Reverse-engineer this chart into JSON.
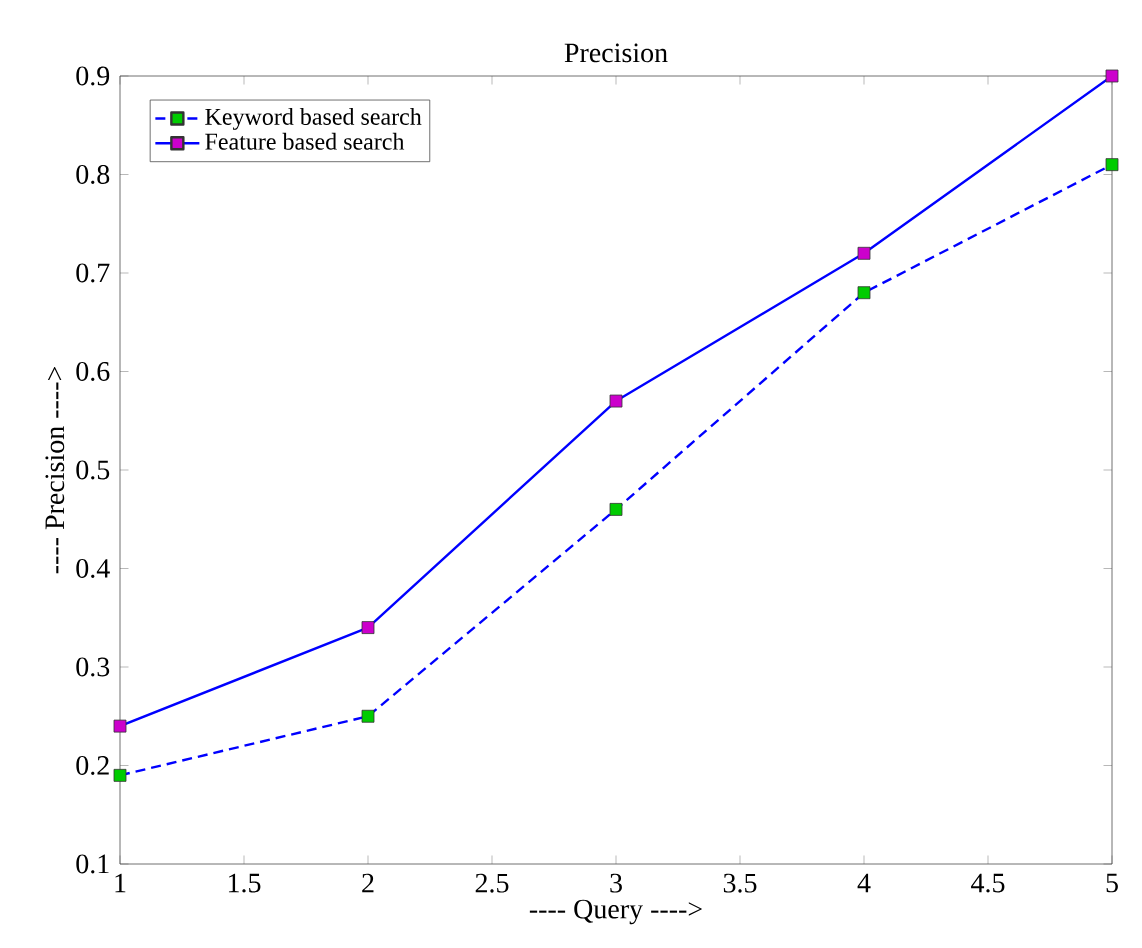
{
  "chart_data": {
    "type": "line",
    "title": "Precision",
    "xlabel": "----   Query   ---->",
    "ylabel": "----   Precision   ---->",
    "x": [
      1,
      2,
      3,
      4,
      5
    ],
    "series": [
      {
        "name": "Keyword based search",
        "color": "#0000ff",
        "colors": [
          "#00cc00",
          "#00cc00",
          "#00cc00",
          "#00cc00",
          "#00cc00"
        ],
        "line_style": "dashed",
        "values": [
          0.19,
          0.25,
          0.46,
          0.68,
          0.81
        ]
      },
      {
        "name": "Feature based search",
        "color": "#0000ff",
        "colors": [
          "#cc00cc",
          "#cc00cc",
          "#cc00cc",
          "#cc00cc",
          "#cc00cc"
        ],
        "line_style": "solid",
        "values": [
          0.24,
          0.34,
          0.57,
          0.72,
          0.9
        ]
      }
    ],
    "xlim": [
      1,
      5
    ],
    "xticks": [
      1,
      1.5,
      2,
      2.5,
      3,
      3.5,
      4,
      4.5,
      5
    ],
    "ylim": [
      0.1,
      0.9
    ],
    "yticks": [
      0.1,
      0.2,
      0.3,
      0.4,
      0.5,
      0.6,
      0.7,
      0.8,
      0.9
    ],
    "marker": "square",
    "legend": "top left",
    "grid": false
  }
}
